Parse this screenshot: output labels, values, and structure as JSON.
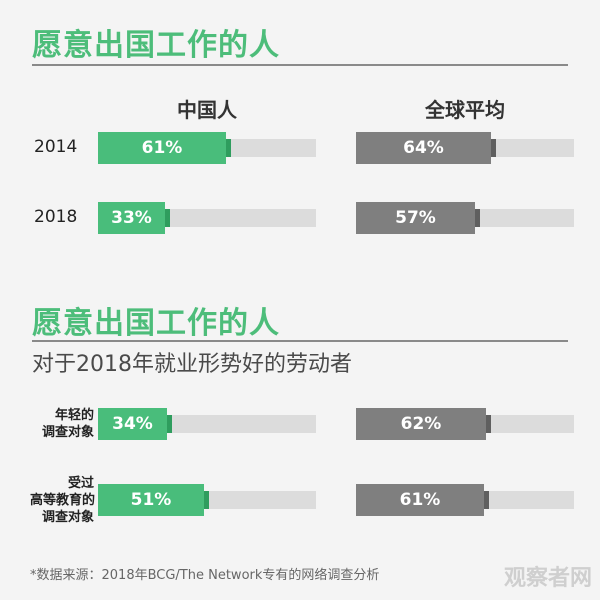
{
  "chart_data": [
    {
      "type": "bar",
      "title": "愿意出国工作的人",
      "categories": [
        "2014",
        "2018"
      ],
      "series": [
        {
          "name": "中国人",
          "values": [
            61,
            33
          ],
          "labels": [
            "61%",
            "33%"
          ]
        },
        {
          "name": "全球平均",
          "values": [
            64,
            57
          ],
          "labels": [
            "64%",
            "57%"
          ]
        }
      ],
      "ylim": [
        0,
        100
      ],
      "colors": {
        "中国人": "#49bd7b",
        "全球平均": "#7f7f7f"
      }
    },
    {
      "type": "bar",
      "title": "愿意出国工作的人",
      "subtitle": "对于2018年就业形势好的劳动者",
      "categories": [
        [
          "年轻的",
          "调查对象"
        ],
        [
          "受过",
          "高等教育的",
          "调查对象"
        ]
      ],
      "series": [
        {
          "name": "中国人",
          "values": [
            34,
            51
          ],
          "labels": [
            "34%",
            "51%"
          ]
        },
        {
          "name": "全球平均",
          "values": [
            62,
            61
          ],
          "labels": [
            "62%",
            "61%"
          ]
        }
      ],
      "ylim": [
        0,
        100
      ],
      "colors": {
        "中国人": "#49bd7b",
        "全球平均": "#7f7f7f"
      }
    }
  ],
  "footnote": "*数据来源：2018年BCG/The Network专有的网络调查分析",
  "watermark": "观察者网"
}
